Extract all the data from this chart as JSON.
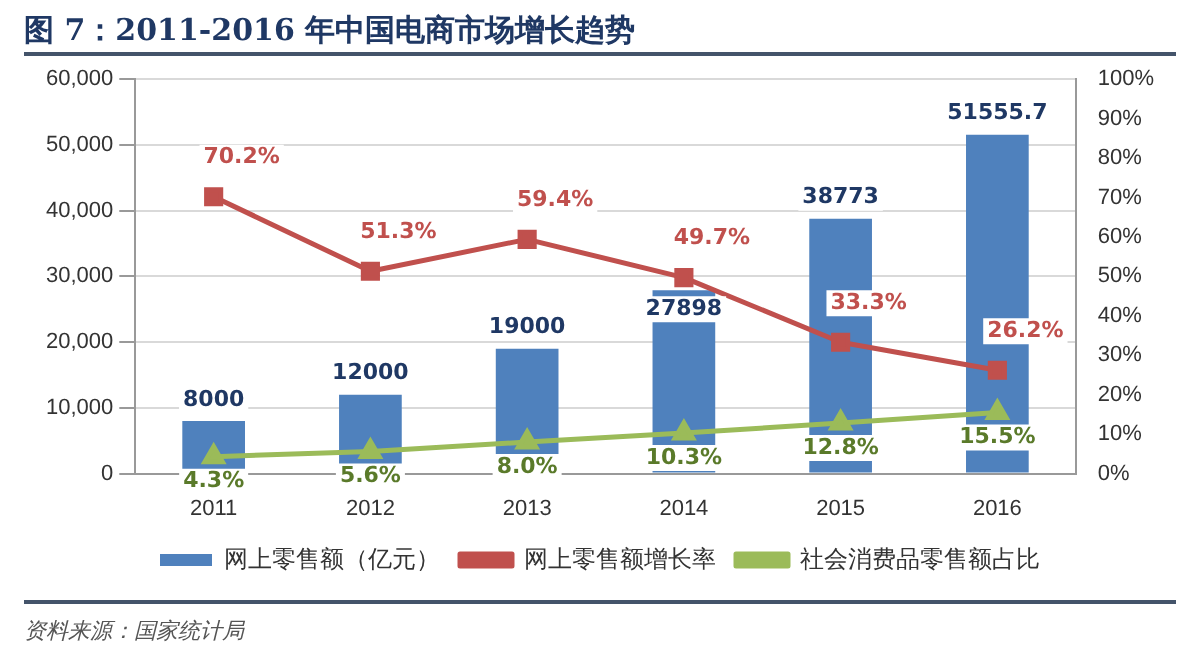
{
  "chart_data": {
    "type": "bar",
    "title": "图 7：2011-2016 年中国电商市场增长趋势",
    "categories": [
      "2011",
      "2012",
      "2013",
      "2014",
      "2015",
      "2016"
    ],
    "series": [
      {
        "name": "网上零售额（亿元）",
        "type": "bar",
        "color": "#4f81bd",
        "values": [
          8000,
          12000,
          19000,
          27898,
          38773,
          51555.7
        ],
        "value_labels": [
          "8000",
          "12000",
          "19000",
          "27898",
          "38773",
          "51555.7"
        ]
      },
      {
        "name": "网上零售额增长率",
        "type": "line",
        "axis": "y2",
        "marker": "square",
        "color": "#c0504d",
        "values": [
          70.2,
          51.3,
          59.4,
          49.7,
          33.3,
          26.2
        ],
        "value_labels": [
          "70.2%",
          "51.3%",
          "59.4%",
          "49.7%",
          "33.3%",
          "26.2%"
        ]
      },
      {
        "name": "社会消费品零售额占比",
        "type": "line",
        "axis": "y2",
        "marker": "triangle",
        "color": "#9bbb59",
        "values": [
          4.3,
          5.6,
          8.0,
          10.3,
          12.8,
          15.5
        ],
        "value_labels": [
          "4.3%",
          "5.6%",
          "8.0%",
          "10.3%",
          "12.8%",
          "15.5%"
        ]
      }
    ],
    "ylim": [
      0,
      60000
    ],
    "yticks": [
      {
        "value": 0,
        "label": "0"
      },
      {
        "value": 10000,
        "label": "10,000"
      },
      {
        "value": 20000,
        "label": "20,000"
      },
      {
        "value": 30000,
        "label": "30,000"
      },
      {
        "value": 40000,
        "label": "40,000"
      },
      {
        "value": 50000,
        "label": "50,000"
      },
      {
        "value": 60000,
        "label": "60,000"
      }
    ],
    "y2lim": [
      0,
      100
    ],
    "y2ticks": [
      {
        "value": 0,
        "label": "0%"
      },
      {
        "value": 10,
        "label": "10%"
      },
      {
        "value": 20,
        "label": "20%"
      },
      {
        "value": 30,
        "label": "30%"
      },
      {
        "value": 40,
        "label": "40%"
      },
      {
        "value": 50,
        "label": "50%"
      },
      {
        "value": 60,
        "label": "60%"
      },
      {
        "value": 70,
        "label": "70%"
      },
      {
        "value": 80,
        "label": "80%"
      },
      {
        "value": 90,
        "label": "90%"
      },
      {
        "value": 100,
        "label": "100%"
      }
    ],
    "grid": "y",
    "legend": "bottom",
    "annotations": [
      "资料来源：国家统计局"
    ]
  }
}
